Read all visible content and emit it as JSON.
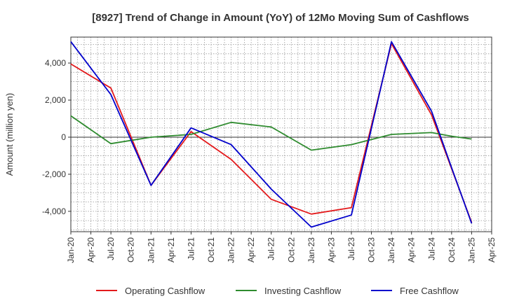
{
  "chart_data": {
    "type": "line",
    "title": "[8927]  Trend of Change in Amount (YoY) of 12Mo Moving Sum of Cashflows",
    "xlabel": "",
    "ylabel": "Amount (million yen)",
    "ylim": [
      -5100,
      5400
    ],
    "yticks": [
      -4000,
      -2000,
      0,
      2000,
      4000
    ],
    "ytick_labels": [
      "-4,000",
      "-2,000",
      "0",
      "2,000",
      "4,000"
    ],
    "xticks": [
      "Jan-20",
      "Apr-20",
      "Jul-20",
      "Oct-20",
      "Jan-21",
      "Apr-21",
      "Jul-21",
      "Oct-21",
      "Jan-22",
      "Apr-22",
      "Jul-22",
      "Oct-22",
      "Jan-23",
      "Apr-23",
      "Jul-23",
      "Oct-23",
      "Jan-24",
      "Apr-24",
      "Jul-24",
      "Oct-24",
      "Jan-25",
      "Apr-25"
    ],
    "x_index": [
      0,
      2,
      4,
      6,
      8,
      10,
      12,
      14,
      16,
      18,
      19,
      20
    ],
    "grid": true,
    "legend_position": "bottom",
    "series": [
      {
        "name": "Operating Cashflow",
        "color": "#e31a1c",
        "x": [
          "Jan-20",
          "Jul-20",
          "Jan-21",
          "Jul-21",
          "Jan-22",
          "Jul-22",
          "Jan-23",
          "Jul-23",
          "Jan-24",
          "Jul-24",
          "Oct-24",
          "Jan-25"
        ],
        "values": [
          3950,
          2650,
          -2600,
          300,
          -1200,
          -3350,
          -4150,
          -3800,
          5050,
          1200,
          -1700,
          -4600
        ]
      },
      {
        "name": "Investing Cashflow",
        "color": "#2e8b2e",
        "x": [
          "Jan-20",
          "Jul-20",
          "Jan-21",
          "Jul-21",
          "Jan-22",
          "Jul-22",
          "Jan-23",
          "Jul-23",
          "Jan-24",
          "Jul-24",
          "Oct-24",
          "Jan-25"
        ],
        "values": [
          1150,
          -350,
          0,
          150,
          800,
          550,
          -700,
          -400,
          150,
          250,
          50,
          -100
        ]
      },
      {
        "name": "Free Cashflow",
        "color": "#0000cc",
        "x": [
          "Jan-20",
          "Jul-20",
          "Jan-21",
          "Jul-21",
          "Jan-22",
          "Jul-22",
          "Jan-23",
          "Jul-23",
          "Jan-24",
          "Jul-24",
          "Oct-24",
          "Jan-25"
        ],
        "values": [
          5150,
          2300,
          -2600,
          500,
          -400,
          -2800,
          -4850,
          -4200,
          5150,
          1400,
          -1650,
          -4650
        ]
      }
    ]
  }
}
